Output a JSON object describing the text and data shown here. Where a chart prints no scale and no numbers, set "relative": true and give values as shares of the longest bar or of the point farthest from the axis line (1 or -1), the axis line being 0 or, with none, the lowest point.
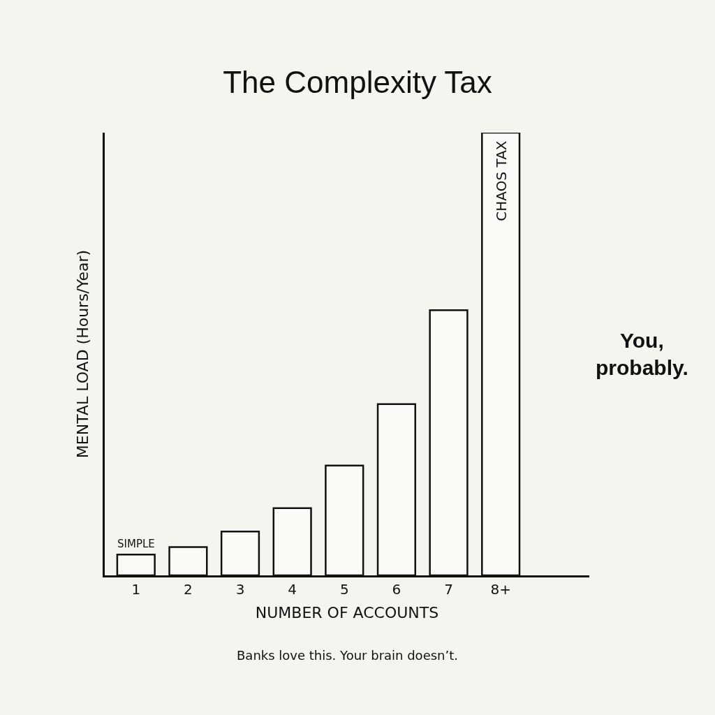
{
  "chart_data": {
    "type": "bar",
    "title": "The Complexity Tax",
    "xlabel": "NUMBER OF ACCOUNTS",
    "ylabel": "MENTAL LOAD (Hours/Year)",
    "relative": true,
    "categories": [
      "1",
      "2",
      "3",
      "4",
      "5",
      "6",
      "7",
      "8+"
    ],
    "values": [
      0.047,
      0.064,
      0.099,
      0.152,
      0.248,
      0.387,
      0.599,
      1
    ],
    "color": "#fbfaf6",
    "annotations": [
      {
        "text": "SIMPLE",
        "x": "1",
        "y": 0.047
      },
      {
        "text": "CHAOS TAX",
        "x": "8+",
        "y": 1
      },
      "You,\nprobably.",
      "Banks love this. Your brain doesn’t."
    ],
    "grid": false,
    "legend": false
  }
}
